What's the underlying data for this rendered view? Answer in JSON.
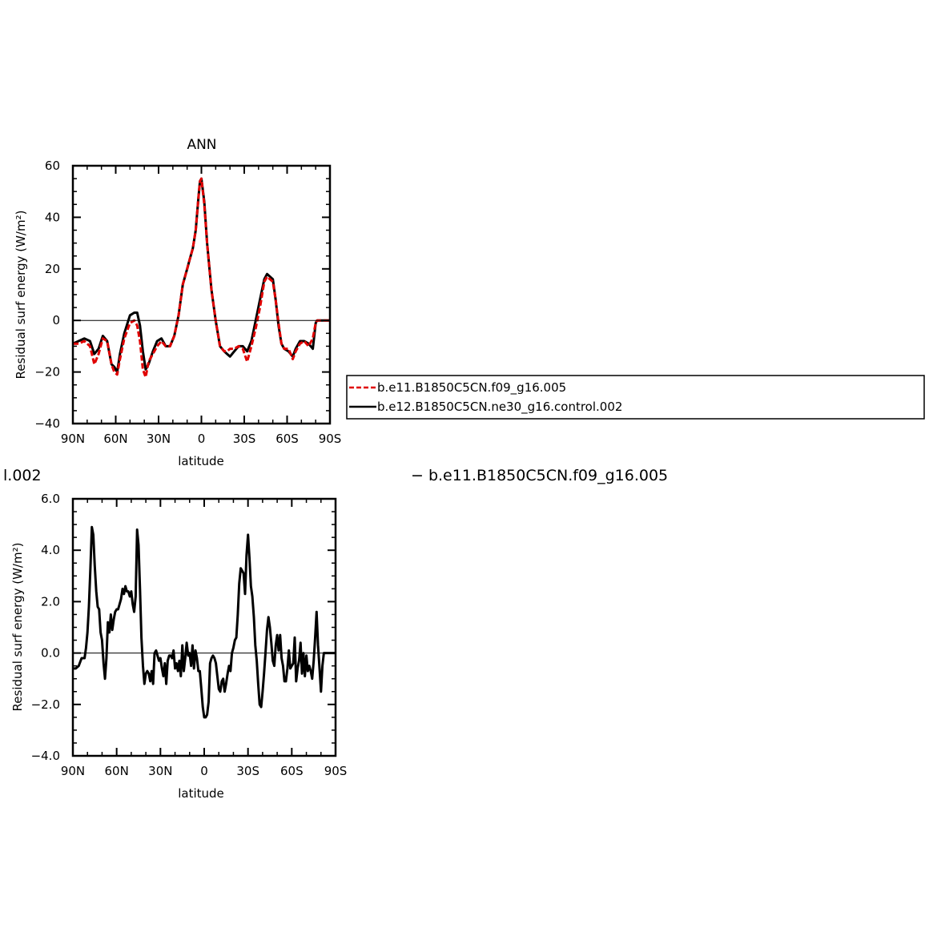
{
  "chart_data": [
    {
      "type": "line",
      "title": "ANN",
      "xlabel": "latitude",
      "ylabel": "Residual surf energy (W/m²)",
      "xlim": [
        90,
        -90
      ],
      "ylim": [
        -40,
        60
      ],
      "xticks": [
        {
          "value": 90,
          "label": "90N"
        },
        {
          "value": 60,
          "label": "60N"
        },
        {
          "value": 30,
          "label": "30N"
        },
        {
          "value": 0,
          "label": "0"
        },
        {
          "value": -30,
          "label": "30S"
        },
        {
          "value": -60,
          "label": "60S"
        },
        {
          "value": -90,
          "label": "90S"
        }
      ],
      "yticks": [
        {
          "value": -40,
          "label": "−40"
        },
        {
          "value": -20,
          "label": "−20"
        },
        {
          "value": 0,
          "label": "0"
        },
        {
          "value": 20,
          "label": "20"
        },
        {
          "value": 40,
          "label": "40"
        },
        {
          "value": 60,
          "label": "60"
        }
      ],
      "legend": {
        "placement": "right"
      },
      "series": [
        {
          "name": "b.e11.B1850C5CN.f09_g16.005",
          "color": "#e00000",
          "dash": true,
          "x": [
            90,
            86,
            82,
            78,
            75,
            72,
            69,
            66,
            63,
            61,
            59,
            57,
            54,
            50,
            47,
            45,
            43,
            41,
            39,
            37,
            34,
            31,
            28,
            25,
            22,
            19,
            16,
            13,
            10,
            8,
            6,
            4,
            2,
            1,
            0,
            -2,
            -4,
            -7,
            -10,
            -13,
            -16,
            -18,
            -20,
            -23,
            -26,
            -29,
            -32,
            -35,
            -38,
            -41,
            -44,
            -46,
            -48,
            -50,
            -52,
            -54,
            -56,
            -58,
            -61,
            -64,
            -66,
            -69,
            -72,
            -75,
            -78,
            -80,
            -81,
            -83,
            -86,
            -90
          ],
          "y": [
            -9,
            -9,
            -8,
            -10,
            -17,
            -13,
            -7,
            -8,
            -17,
            -20,
            -21,
            -15,
            -7,
            -1,
            0,
            -2,
            -8,
            -19,
            -22,
            -16,
            -13,
            -10,
            -8,
            -10,
            -10,
            -6,
            2,
            14,
            20,
            24,
            28,
            35,
            48,
            54,
            55,
            45,
            30,
            12,
            0,
            -10,
            -12,
            -12,
            -11,
            -11,
            -10,
            -11,
            -16,
            -10,
            -3,
            5,
            15,
            17,
            16,
            15,
            8,
            -1,
            -9,
            -11,
            -11,
            -15,
            -12,
            -9,
            -8,
            -10,
            -7,
            -1,
            0,
            0,
            0,
            0
          ]
        },
        {
          "name": "b.e12.B1850C5CN.ne30_g16.control.002",
          "color": "#000000",
          "dash": false,
          "x": [
            90,
            86,
            82,
            78,
            75,
            72,
            69,
            66,
            63,
            61,
            59,
            57,
            54,
            50,
            47,
            45,
            43,
            41,
            39,
            37,
            34,
            31,
            28,
            25,
            22,
            19,
            16,
            13,
            10,
            8,
            6,
            4,
            2,
            1,
            0,
            -2,
            -4,
            -7,
            -10,
            -13,
            -16,
            -18,
            -20,
            -23,
            -26,
            -29,
            -32,
            -35,
            -38,
            -41,
            -44,
            -46,
            -48,
            -50,
            -52,
            -54,
            -56,
            -58,
            -61,
            -64,
            -66,
            -69,
            -72,
            -75,
            -78,
            -80,
            -81,
            -83,
            -86,
            -90
          ],
          "y": [
            -9,
            -8,
            -7,
            -8,
            -13,
            -11,
            -6,
            -8,
            -17,
            -18,
            -20,
            -13,
            -5,
            2,
            3,
            3,
            -2,
            -12,
            -19,
            -17,
            -12,
            -8,
            -7,
            -10,
            -10,
            -6,
            2,
            14,
            20,
            24,
            28,
            35,
            48,
            54,
            55,
            46,
            30,
            12,
            0,
            -10,
            -12,
            -13,
            -14,
            -12,
            -10,
            -10,
            -12,
            -8,
            0,
            8,
            16,
            18,
            17,
            16,
            8,
            -2,
            -9,
            -11,
            -12,
            -14,
            -11,
            -8,
            -8,
            -9,
            -11,
            -1,
            0,
            0,
            0,
            0
          ]
        }
      ]
    },
    {
      "type": "line",
      "title": "",
      "xlabel": "latitude",
      "ylabel": "Residual surf energy (W/m²)",
      "xlim": [
        90,
        -90
      ],
      "ylim": [
        -4,
        6
      ],
      "xticks": [
        {
          "value": 90,
          "label": "90N"
        },
        {
          "value": 60,
          "label": "60N"
        },
        {
          "value": 30,
          "label": "30N"
        },
        {
          "value": 0,
          "label": "0"
        },
        {
          "value": -30,
          "label": "30S"
        },
        {
          "value": -60,
          "label": "60S"
        },
        {
          "value": -90,
          "label": "90S"
        }
      ],
      "yticks": [
        {
          "value": -4,
          "label": "−4.0"
        },
        {
          "value": -2,
          "label": "−2.0"
        },
        {
          "value": 0,
          "label": "0.0"
        },
        {
          "value": 2,
          "label": "2.0"
        },
        {
          "value": 4,
          "label": "4.0"
        },
        {
          "value": 6,
          "label": "6.0"
        }
      ],
      "series": [
        {
          "color": "#000000",
          "x": [
            90,
            88,
            86,
            84,
            82,
            81,
            80,
            79,
            78,
            77,
            76,
            75,
            74,
            73,
            72,
            71,
            70,
            69,
            68,
            67,
            66,
            65,
            64,
            63,
            62,
            61,
            60,
            59,
            58,
            57,
            56,
            55,
            54,
            53,
            52,
            51,
            50,
            49,
            48,
            47,
            46,
            45,
            44,
            43,
            42,
            41,
            40,
            39,
            38,
            37,
            36,
            35,
            34,
            33,
            32,
            31,
            30,
            29,
            28,
            27,
            26,
            25,
            24,
            23,
            22,
            21,
            20,
            19,
            18,
            17,
            16,
            15,
            14,
            13,
            12,
            11,
            10,
            9,
            8,
            7,
            6,
            5,
            4,
            3,
            2,
            1,
            0,
            -1,
            -2,
            -3,
            -4,
            -5,
            -6,
            -7,
            -8,
            -9,
            -10,
            -11,
            -12,
            -13,
            -14,
            -15,
            -16,
            -17,
            -18,
            -19,
            -20,
            -21,
            -22,
            -23,
            -24,
            -25,
            -26,
            -27,
            -28,
            -29,
            -30,
            -31,
            -32,
            -33,
            -34,
            -35,
            -36,
            -37,
            -38,
            -39,
            -40,
            -41,
            -42,
            -43,
            -44,
            -45,
            -46,
            -47,
            -48,
            -49,
            -50,
            -51,
            -52,
            -53,
            -54,
            -55,
            -56,
            -57,
            -58,
            -59,
            -60,
            -61,
            -62,
            -63,
            -64,
            -65,
            -66,
            -67,
            -68,
            -69,
            -70,
            -71,
            -72,
            -73,
            -74,
            -75,
            -76,
            -77,
            -78,
            -79,
            -80,
            -81,
            -82,
            -84,
            -86,
            -88,
            -90
          ],
          "y": [
            -0.6,
            -0.6,
            -0.5,
            -0.2,
            -0.2,
            0.2,
            0.8,
            1.8,
            3.3,
            4.9,
            4.6,
            3.4,
            2.4,
            1.8,
            1.7,
            0.8,
            0.5,
            -0.4,
            -1.0,
            -0.2,
            1.2,
            0.8,
            1.5,
            0.9,
            1.3,
            1.6,
            1.7,
            1.7,
            1.9,
            2.1,
            2.5,
            2.3,
            2.6,
            2.4,
            2.4,
            2.2,
            2.4,
            1.9,
            1.6,
            2.2,
            4.8,
            4.2,
            2.5,
            0.6,
            -0.5,
            -1.2,
            -0.8,
            -0.7,
            -0.8,
            -1.1,
            -0.7,
            -1.2,
            0.0,
            0.1,
            -0.1,
            -0.3,
            -0.2,
            -0.6,
            -0.9,
            -0.4,
            -1.2,
            -0.3,
            -0.1,
            -0.1,
            -0.2,
            0.1,
            -0.6,
            -0.4,
            -0.7,
            -0.3,
            -0.9,
            0.3,
            -0.7,
            -0.2,
            0.4,
            -0.1,
            0.0,
            -0.5,
            0.3,
            -0.6,
            0.1,
            -0.2,
            -0.7,
            -0.7,
            -1.4,
            -2.1,
            -2.5,
            -2.5,
            -2.4,
            -1.9,
            -0.4,
            -0.2,
            -0.1,
            -0.2,
            -0.4,
            -0.9,
            -1.4,
            -1.5,
            -1.1,
            -1.0,
            -1.5,
            -1.2,
            -0.8,
            -0.5,
            -0.7,
            0.0,
            0.2,
            0.5,
            0.6,
            1.5,
            2.7,
            3.3,
            3.2,
            3.1,
            2.3,
            3.8,
            4.6,
            3.7,
            2.6,
            2.2,
            1.4,
            0.3,
            -0.3,
            -1.2,
            -2.0,
            -2.1,
            -1.5,
            -0.8,
            0.0,
            0.9,
            1.4,
            1.0,
            0.4,
            -0.3,
            -0.5,
            0.3,
            0.7,
            0.1,
            0.7,
            -0.2,
            -0.5,
            -1.1,
            -1.1,
            -0.6,
            0.1,
            -0.6,
            -0.5,
            -0.4,
            0.6,
            -1.1,
            -0.6,
            -0.3,
            0.4,
            -0.8,
            0.0,
            -0.9,
            -0.1,
            -0.7,
            -0.5,
            -0.7,
            -1.0,
            -0.3,
            0.6,
            1.6,
            0.3,
            -0.6,
            -1.5,
            -0.5,
            0.0,
            0.0,
            0.0,
            0.0,
            0.0
          ],
          "x_trim_note": ""
        }
      ]
    }
  ],
  "legend_box": {
    "entries": [
      {
        "label": "b.e11.B1850C5CN.f09_g16.005",
        "color": "#e00000",
        "dash": true
      },
      {
        "label": "b.e12.B1850C5CN.ne30_g16.control.002",
        "color": "#000000",
        "dash": false
      }
    ]
  },
  "clipped_title": {
    "left": "l.002",
    "right": "− b.e11.B1850C5CN.f09_g16.005"
  }
}
